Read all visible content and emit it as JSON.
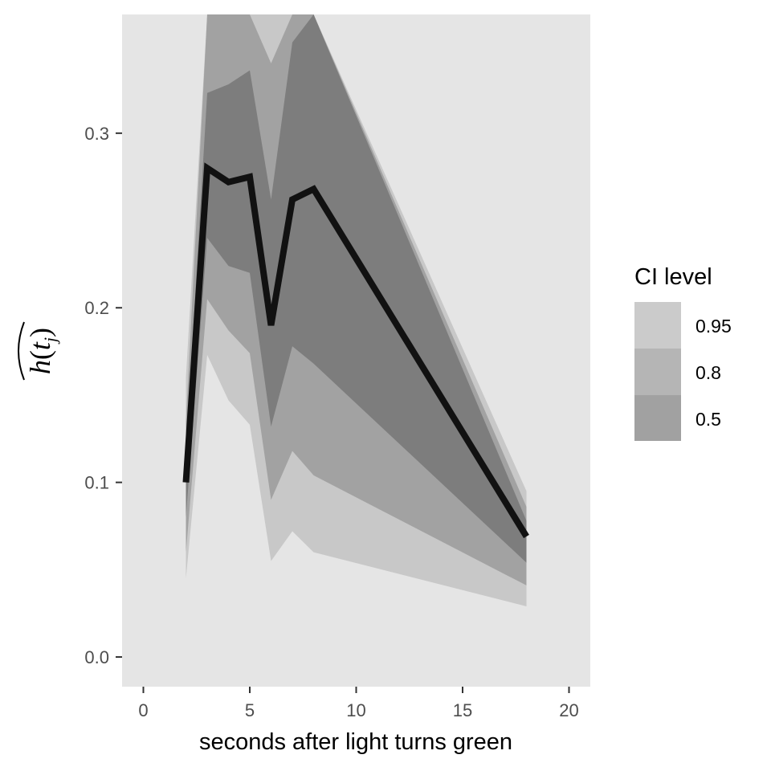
{
  "chart_data": {
    "type": "area",
    "xlabel": "seconds after light turns green",
    "ylabel": "h(t_j)",
    "ylabel_parts": {
      "h": "h",
      "open": "(",
      "t": "t",
      "j": "j",
      "close": ")"
    },
    "xlim": [
      -1,
      21
    ],
    "ylim": [
      -0.017,
      0.368
    ],
    "x_ticks": [
      0,
      5,
      10,
      15,
      20
    ],
    "x_tick_labels": [
      "0",
      "5",
      "10",
      "15",
      "20"
    ],
    "y_ticks": [
      0.0,
      0.1,
      0.2,
      0.3
    ],
    "y_tick_labels": [
      "0.0",
      "0.1",
      "0.2",
      "0.3"
    ],
    "grid": false,
    "legend": {
      "title": "CI level",
      "position": "right",
      "levels": [
        "0.95",
        "0.8",
        "0.5"
      ]
    },
    "x": [
      2,
      3,
      4,
      5,
      6,
      7,
      8,
      18
    ],
    "estimate": [
      0.1,
      0.28,
      0.272,
      0.275,
      0.19,
      0.262,
      0.268,
      0.069
    ],
    "bands": [
      {
        "level": "0.95",
        "lower": [
          0.045,
          0.173,
          0.147,
          0.133,
          0.055,
          0.072,
          0.06,
          0.029
        ],
        "upper": [
          0.16,
          0.368,
          0.368,
          0.368,
          0.368,
          0.368,
          0.368,
          0.095
        ]
      },
      {
        "level": "0.8",
        "lower": [
          0.06,
          0.205,
          0.187,
          0.174,
          0.09,
          0.118,
          0.104,
          0.041
        ],
        "upper": [
          0.135,
          0.368,
          0.368,
          0.368,
          0.34,
          0.368,
          0.368,
          0.086
        ]
      },
      {
        "level": "0.5",
        "lower": [
          0.08,
          0.24,
          0.224,
          0.22,
          0.132,
          0.178,
          0.168,
          0.054
        ],
        "upper": [
          0.118,
          0.323,
          0.328,
          0.336,
          0.262,
          0.352,
          0.368,
          0.078
        ]
      }
    ]
  },
  "colors": {
    "panel_bg": "#e5e5e5",
    "band_95": "#c8c8c8",
    "band_80": "#a2a2a2",
    "band_50": "#7d7d7d",
    "legend_95": "#cbcbcb",
    "legend_80": "#b5b5b5",
    "legend_50": "#a1a1a1",
    "line": "#111111",
    "tick": "#333333"
  }
}
